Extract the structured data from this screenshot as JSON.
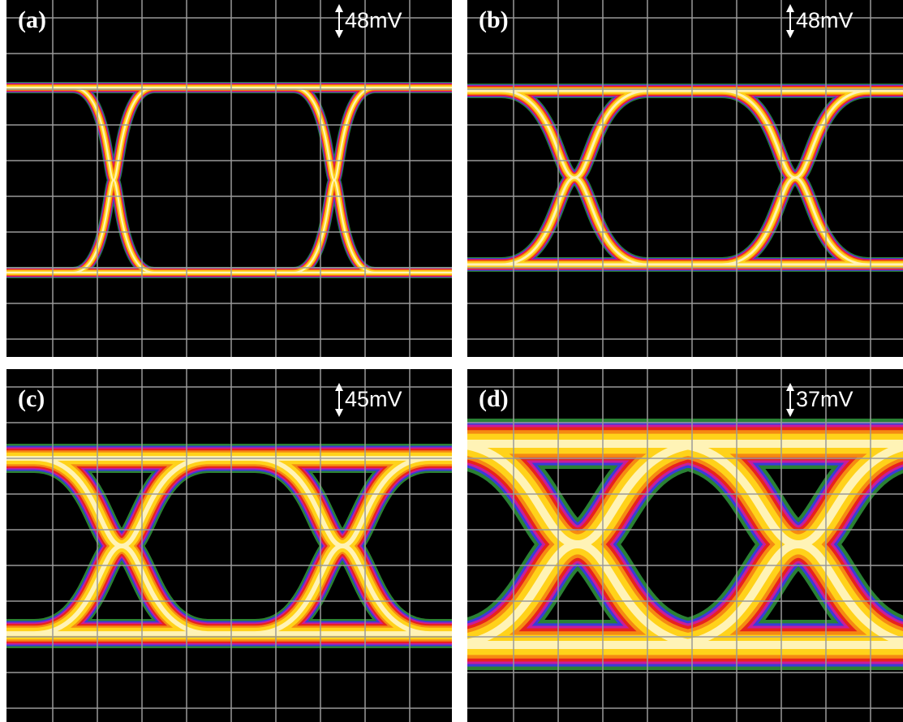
{
  "panels": [
    {
      "label": "(a)",
      "amplitude": "48mV"
    },
    {
      "label": "(b)",
      "amplitude": "48mV"
    },
    {
      "label": "(c)",
      "amplitude": "45mV"
    },
    {
      "label": "(d)",
      "amplitude": "37mV"
    }
  ]
}
